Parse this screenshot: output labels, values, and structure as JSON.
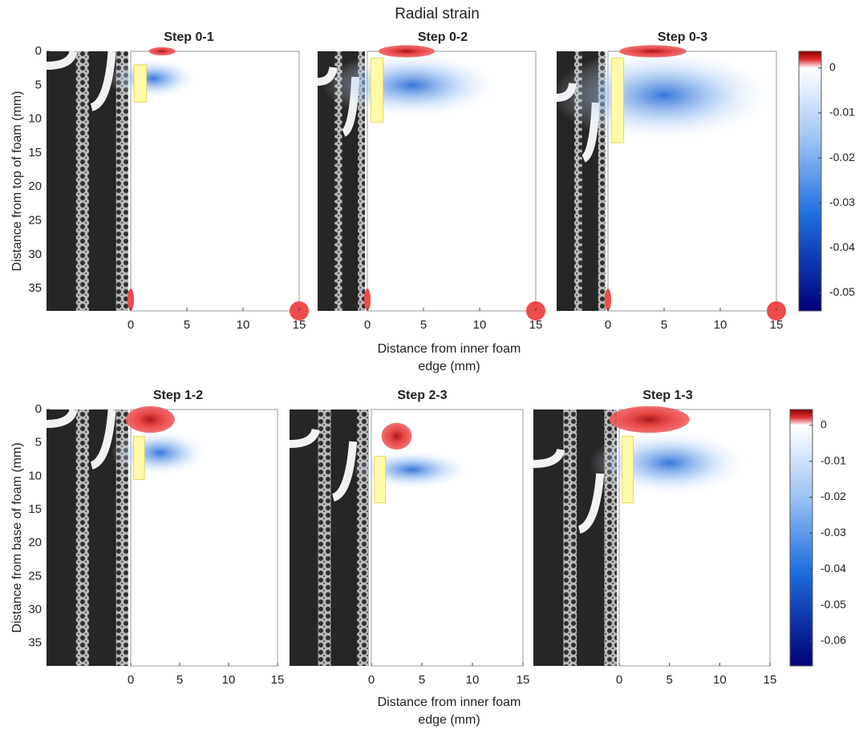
{
  "chart_data": {
    "type": "contour-grid",
    "title": "Radial strain",
    "rows": [
      {
        "ylabel": "Distance from top of foam (mm)",
        "xlabel": "Distance from inner foam edge (mm)",
        "ylim": [
          0,
          38.3
        ],
        "yticks": [
          0,
          5,
          10,
          15,
          20,
          25,
          30,
          35
        ],
        "y_reversed": true,
        "xlim": [
          0,
          15
        ],
        "xticks": [
          0,
          5,
          10,
          15
        ],
        "panels": [
          {
            "title": "Step 0-1"
          },
          {
            "title": "Step 0-2"
          },
          {
            "title": "Step 0-3"
          }
        ],
        "colorbar": {
          "clim": [
            -0.054,
            0.0037
          ],
          "ticks": [
            0,
            -0.01,
            -0.02,
            -0.03,
            -0.04,
            -0.05
          ]
        }
      },
      {
        "ylabel": "Distance from base of foam (mm)",
        "xlabel": "Distance from inner foam edge (mm)",
        "ylim": [
          0,
          38.4
        ],
        "yticks": [
          0,
          5,
          10,
          15,
          20,
          25,
          30,
          35
        ],
        "y_reversed": true,
        "xlim": [
          0,
          15
        ],
        "xticks": [
          0,
          5,
          10,
          15
        ],
        "panels": [
          {
            "title": "Step 1-2"
          },
          {
            "title": "Step 2-3"
          },
          {
            "title": "Step 1-3"
          }
        ],
        "colorbar": {
          "clim": [
            -0.0669,
            0.0044
          ],
          "ticks": [
            0,
            -0.01,
            -0.02,
            -0.03,
            -0.04,
            -0.05,
            -0.06
          ]
        }
      }
    ]
  }
}
